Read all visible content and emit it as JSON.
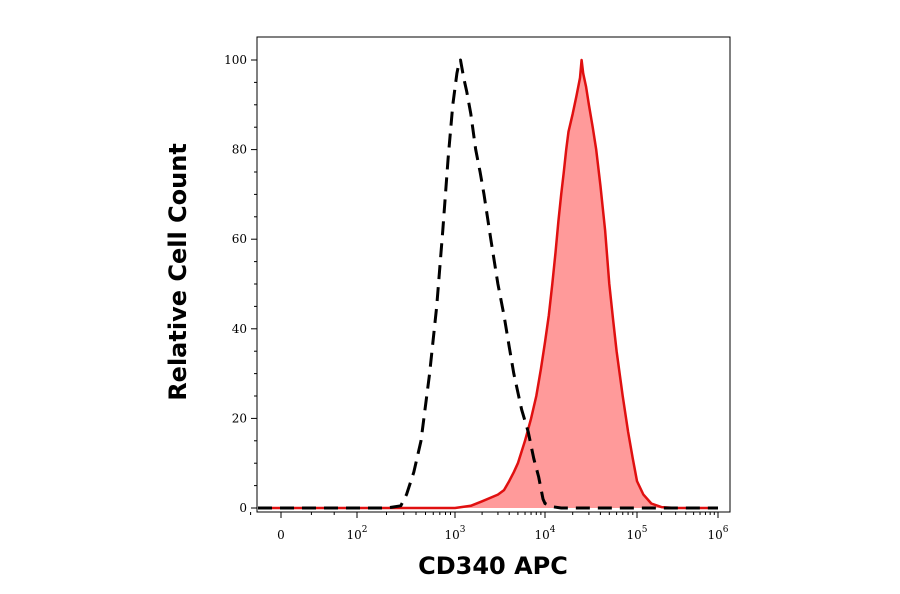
{
  "chart_data": {
    "type": "area",
    "xlabel": "CD340 APC",
    "ylabel": "Relative Cell Count",
    "x_scale": "biexponential (log above 10^2)",
    "ylim": [
      0,
      100
    ],
    "x_ticks": [
      {
        "base": "0",
        "exp": ""
      },
      {
        "base": "10",
        "exp": "2"
      },
      {
        "base": "10",
        "exp": "3"
      },
      {
        "base": "10",
        "exp": "4"
      },
      {
        "base": "10",
        "exp": "5"
      },
      {
        "base": "10",
        "exp": "6"
      }
    ],
    "y_ticks": [
      "0",
      "20",
      "40",
      "60",
      "80",
      "100"
    ],
    "grid": false,
    "series": [
      {
        "style": "dashed",
        "color": "#000000",
        "fill": "none",
        "points": [
          [
            -40,
            0
          ],
          [
            0,
            0
          ],
          [
            50,
            0
          ],
          [
            100,
            0
          ],
          [
            200,
            0
          ],
          [
            280,
            0.5
          ],
          [
            320,
            3
          ],
          [
            380,
            8
          ],
          [
            450,
            15
          ],
          [
            550,
            30
          ],
          [
            650,
            45
          ],
          [
            750,
            62
          ],
          [
            850,
            78
          ],
          [
            950,
            90
          ],
          [
            1050,
            97
          ],
          [
            1100,
            99
          ],
          [
            1150,
            100
          ],
          [
            1250,
            96
          ],
          [
            1350,
            93
          ],
          [
            1500,
            88
          ],
          [
            1700,
            80
          ],
          [
            1900,
            75
          ],
          [
            2100,
            70
          ],
          [
            2500,
            60
          ],
          [
            3000,
            50
          ],
          [
            3500,
            43
          ],
          [
            4000,
            36
          ],
          [
            4500,
            30
          ],
          [
            5500,
            22
          ],
          [
            6500,
            17
          ],
          [
            7500,
            11
          ],
          [
            8500,
            7
          ],
          [
            9500,
            2
          ],
          [
            10000,
            1
          ],
          [
            12000,
            0.3
          ],
          [
            15000,
            0
          ],
          [
            30000,
            0
          ],
          [
            100000,
            0
          ],
          [
            1000000,
            0
          ]
        ]
      },
      {
        "style": "solid",
        "color": "#e01010",
        "fill": "#ff9a9a",
        "points": [
          [
            -40,
            0
          ],
          [
            0,
            0
          ],
          [
            100,
            0
          ],
          [
            500,
            0
          ],
          [
            1000,
            0
          ],
          [
            1500,
            0.5
          ],
          [
            2000,
            1.5
          ],
          [
            3000,
            3
          ],
          [
            3500,
            4
          ],
          [
            4000,
            6
          ],
          [
            4500,
            8
          ],
          [
            5000,
            10
          ],
          [
            6000,
            15
          ],
          [
            7000,
            20
          ],
          [
            8000,
            25
          ],
          [
            9000,
            31
          ],
          [
            10000,
            37
          ],
          [
            11000,
            43
          ],
          [
            12000,
            50
          ],
          [
            13000,
            57
          ],
          [
            14000,
            64
          ],
          [
            15000,
            70
          ],
          [
            16000,
            75
          ],
          [
            17000,
            80
          ],
          [
            18000,
            84
          ],
          [
            20000,
            88
          ],
          [
            22000,
            92
          ],
          [
            24000,
            96
          ],
          [
            25000,
            100
          ],
          [
            26000,
            97
          ],
          [
            28000,
            94
          ],
          [
            30000,
            90
          ],
          [
            33000,
            85
          ],
          [
            36000,
            80
          ],
          [
            40000,
            72
          ],
          [
            45000,
            62
          ],
          [
            50000,
            50
          ],
          [
            55000,
            42
          ],
          [
            60000,
            35
          ],
          [
            70000,
            25
          ],
          [
            80000,
            17
          ],
          [
            90000,
            11
          ],
          [
            100000,
            6
          ],
          [
            120000,
            3
          ],
          [
            150000,
            1
          ],
          [
            200000,
            0.2
          ],
          [
            300000,
            0
          ],
          [
            1000000,
            0
          ]
        ]
      }
    ]
  }
}
